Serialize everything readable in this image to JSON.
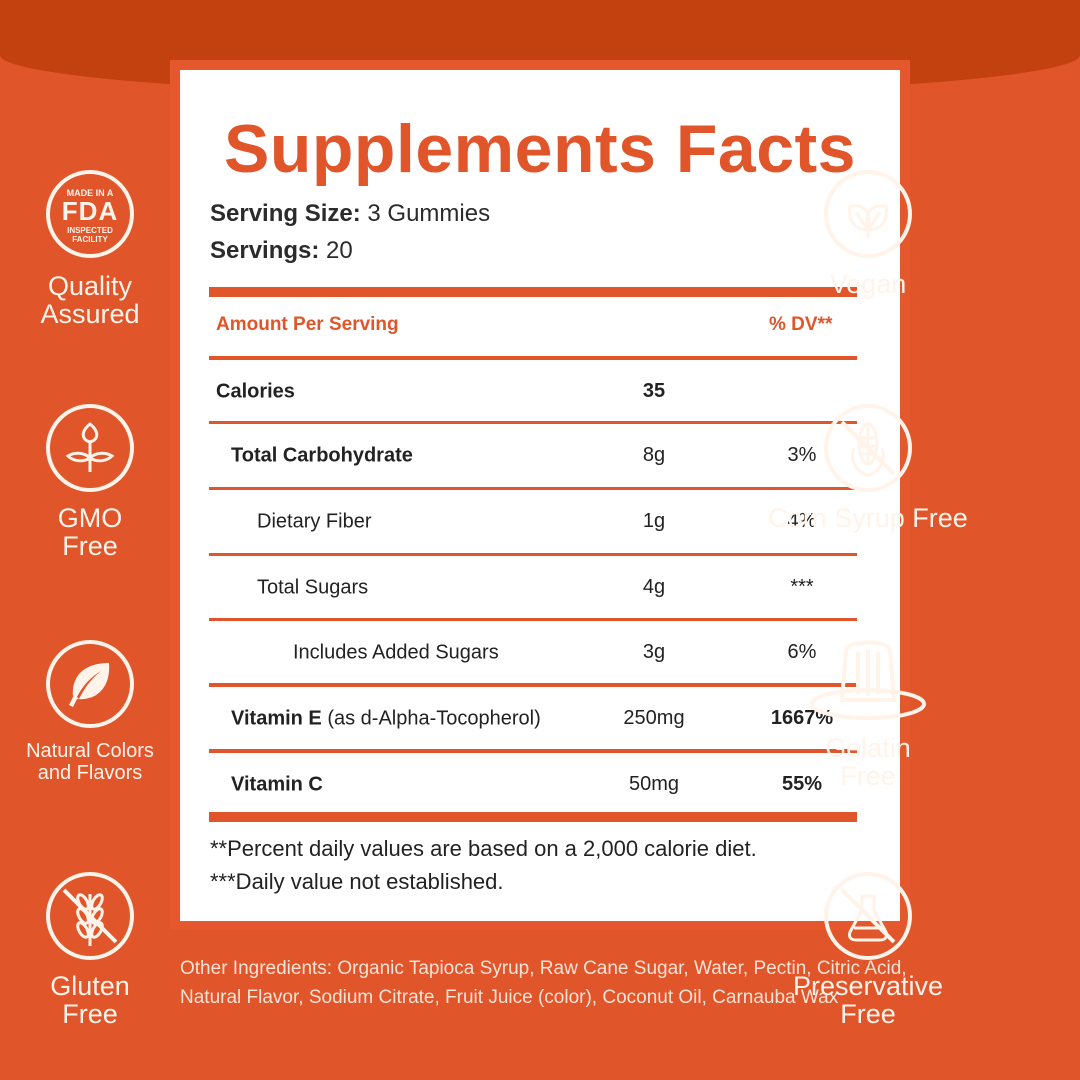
{
  "title": "Supplements Facts",
  "serving": {
    "size_label": "Serving Size:",
    "size_value": " 3 Gummies",
    "count_label": "Servings:",
    "count_value": " 20"
  },
  "table": {
    "header_amount": "Amount Per Serving",
    "header_dv": "% DV**",
    "rows": [
      {
        "name": "Calories",
        "detail": "",
        "amount": "35",
        "dv": ""
      },
      {
        "name": "Total Carbohydrate",
        "detail": "",
        "amount": "8g",
        "dv": "3%"
      },
      {
        "name": "Dietary Fiber",
        "detail": "",
        "amount": "1g",
        "dv": "4%"
      },
      {
        "name": "Total Sugars",
        "detail": "",
        "amount": "4g",
        "dv": "***"
      },
      {
        "name": "Includes Added Sugars",
        "detail": "",
        "amount": "3g",
        "dv": "6%"
      },
      {
        "name": "Vitamin E",
        "detail": " (as d-Alpha-Tocopherol)",
        "amount": "250mg",
        "dv": "1667%"
      },
      {
        "name": "Vitamin C",
        "detail": "",
        "amount": "50mg",
        "dv": "55%"
      }
    ]
  },
  "footnotes": [
    "**Percent daily values are based on a 2,000 calorie diet.",
    "***Daily value not established."
  ],
  "ingredients": "Other Ingredients: Organic Tapioca Syrup, Raw Cane Sugar, Water, Pectin, Citric Acid, Natural Flavor, Sodium Citrate, Fruit Juice (color), Coconut Oil, Carnauba Wax",
  "badges": {
    "fda": {
      "top": "MADE IN A",
      "mid": "FDA",
      "bottom": "INSPECTED FACILITY",
      "label": "Quality Assured",
      "icon": "fda-seal-icon"
    },
    "gmo": {
      "label": "GMO Free",
      "icon": "sprout-icon"
    },
    "natural": {
      "label": "Natural Colors and Flavors",
      "icon": "leaf-icon"
    },
    "gluten": {
      "label": "Gluten Free",
      "icon": "wheat-crossed-icon"
    },
    "vegan": {
      "label": "Vegan",
      "icon": "leaves-icon"
    },
    "corn": {
      "label": "Corn Syrup Free",
      "icon": "corn-crossed-icon"
    },
    "gelatin": {
      "label": "Gelatin Free",
      "icon": "jelly-icon"
    },
    "preservative": {
      "label": "Preservative Free",
      "icon": "flask-crossed-icon"
    }
  },
  "colors": {
    "brand_orange": "#E0552A",
    "dark_orange": "#C2410F",
    "cream": "#FFF3EA"
  }
}
